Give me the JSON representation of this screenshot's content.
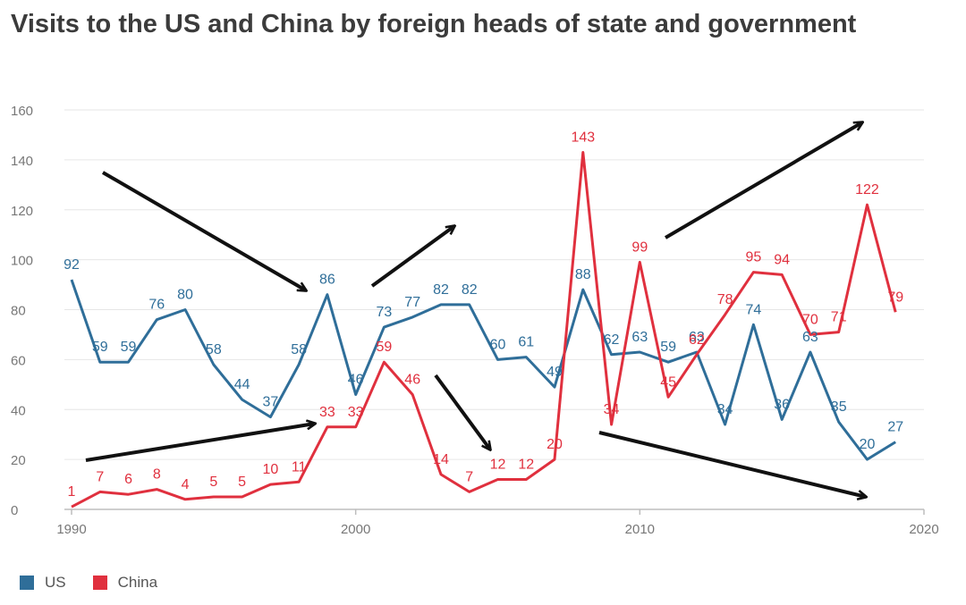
{
  "title": "Visits to the US and China by foreign heads of state and government",
  "chart_data": {
    "type": "line",
    "title": "Visits to the US and China by foreign heads of state and government",
    "xlim": [
      1990,
      2020
    ],
    "ylim": [
      0,
      160
    ],
    "xticks": [
      "1990",
      "2000",
      "2010",
      "2020"
    ],
    "yticks": [
      "0",
      "20",
      "40",
      "60",
      "80",
      "100",
      "120",
      "140",
      "160"
    ],
    "grid": true,
    "legend_position": "bottom-left",
    "x": [
      1990,
      1991,
      1992,
      1993,
      1994,
      1995,
      1996,
      1997,
      1998,
      1999,
      2000,
      2001,
      2002,
      2003,
      2004,
      2005,
      2006,
      2007,
      2008,
      2009,
      2010,
      2011,
      2012,
      2013,
      2014,
      2015,
      2016,
      2017,
      2018,
      2019
    ],
    "series": [
      {
        "name": "US",
        "color": "#2f6e99",
        "values": [
          92,
          59,
          59,
          76,
          80,
          58,
          44,
          37,
          58,
          86,
          46,
          73,
          77,
          82,
          82,
          60,
          61,
          49,
          88,
          62,
          63,
          59,
          63,
          34,
          74,
          36,
          63,
          35,
          20,
          27
        ]
      },
      {
        "name": "China",
        "color": "#e0303e",
        "values": [
          1,
          7,
          6,
          8,
          4,
          5,
          5,
          10,
          11,
          33,
          33,
          59,
          46,
          14,
          7,
          12,
          12,
          20,
          143,
          34,
          99,
          45,
          62,
          78,
          95,
          94,
          70,
          71,
          122,
          79
        ]
      }
    ]
  }
}
